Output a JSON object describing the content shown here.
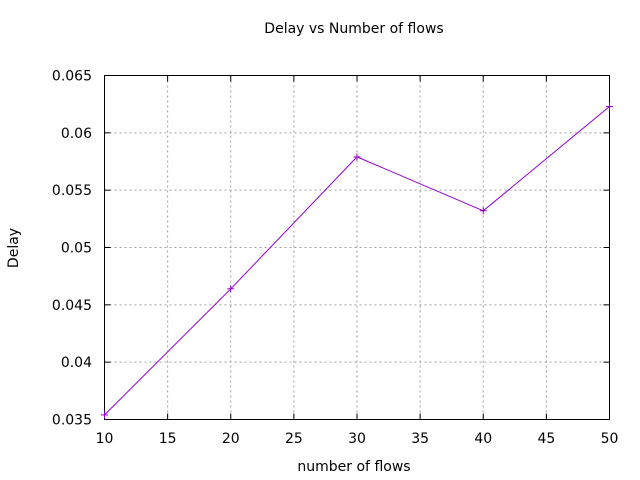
{
  "chart_data": {
    "type": "line",
    "title": "Delay vs Number of flows",
    "xlabel": "number of flows",
    "ylabel": "Delay",
    "xlim": [
      10,
      50
    ],
    "ylim": [
      0.035,
      0.065
    ],
    "x_ticks": [
      "10",
      "15",
      "20",
      "25",
      "30",
      "35",
      "40",
      "45",
      "50"
    ],
    "y_ticks": [
      "0.035",
      "0.04",
      "0.045",
      "0.05",
      "0.055",
      "0.06",
      "0.065"
    ],
    "grid": true,
    "legend": "none",
    "series": [
      {
        "color": "#9400d3",
        "marker": "plus",
        "x": [
          10,
          20,
          30,
          40,
          50
        ],
        "y": [
          0.0354,
          0.0464,
          0.0579,
          0.0532,
          0.0623
        ]
      }
    ]
  }
}
